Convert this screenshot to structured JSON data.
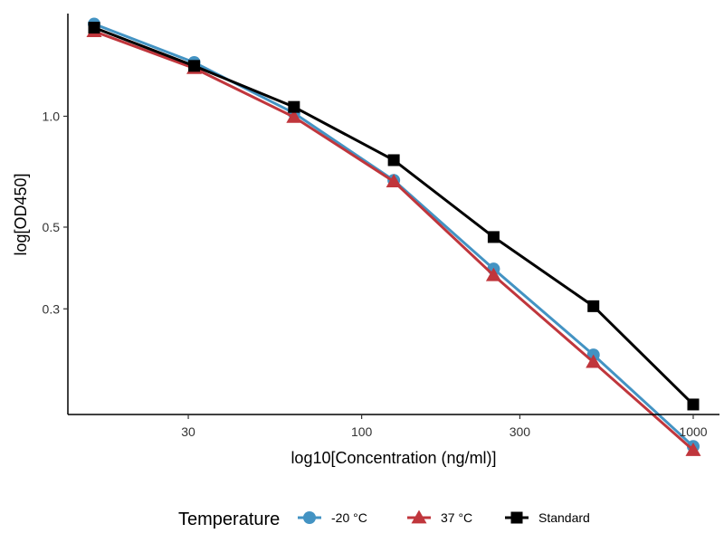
{
  "chart_data": {
    "type": "line",
    "title": "",
    "xlabel": "log10[Concentration (ng/ml)]",
    "ylabel": "log[OD450]",
    "x_scale": "log10",
    "y_scale": "log10",
    "xlim": [
      13,
      1200
    ],
    "ylim": [
      0.155,
      1.9
    ],
    "x_ticks": [
      30,
      100,
      300,
      1000
    ],
    "x_tick_labels": [
      "30",
      "100",
      "300",
      "1000"
    ],
    "y_ticks": [
      1.0,
      0.5,
      0.3
    ],
    "y_tick_labels": [
      "1.0",
      "0.5",
      "0.3"
    ],
    "grid": false,
    "legend_title": "Temperature",
    "legend_position": "bottom",
    "x": [
      15.6,
      31.25,
      62.5,
      125,
      250,
      500,
      1000
    ],
    "series": [
      {
        "name": "-20 °C",
        "label": "-20 °C",
        "color": "#4393c3",
        "marker": "circle",
        "values": [
          1.78,
          1.4,
          1.02,
          0.67,
          0.385,
          0.225,
          0.127
        ]
      },
      {
        "name": "37 °C",
        "label": "37 °C",
        "color": "#c0363c",
        "marker": "triangle",
        "values": [
          1.7,
          1.35,
          0.995,
          0.665,
          0.37,
          0.215,
          0.124
        ]
      },
      {
        "name": "Standard",
        "label": "Standard",
        "color": "#000000",
        "marker": "square",
        "values": [
          1.74,
          1.37,
          1.06,
          0.76,
          0.47,
          0.305,
          0.165
        ]
      }
    ]
  }
}
